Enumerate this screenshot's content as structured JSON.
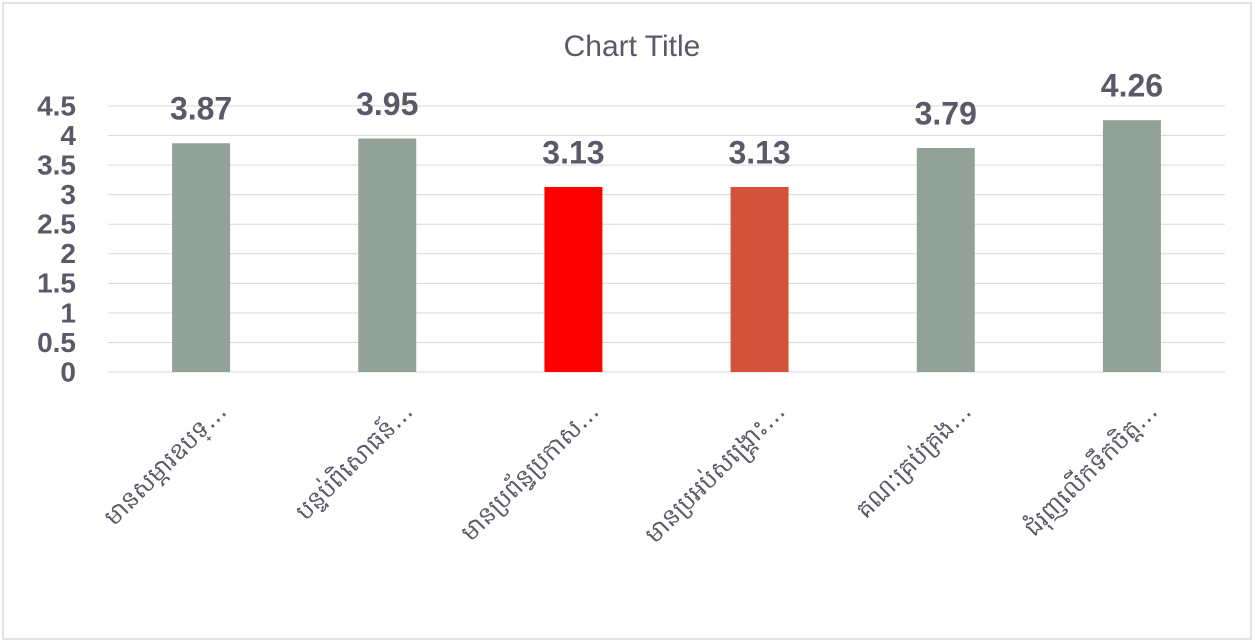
{
  "chart_data": {
    "type": "bar",
    "title": "Chart Title",
    "categories": [
      "មានសម្ភារឧបទ្…",
      "បន្ទប់ពិសោធន៍…",
      "មានប្រព័ន្ធប្រកាស…",
      "មានប្រអប់សង្គ្រោះ…",
      "គណៈគ្រប់គ្រង…",
      "ជំរុញលើកទឹកចិត្ត…"
    ],
    "values": [
      3.87,
      3.95,
      3.13,
      3.13,
      3.79,
      4.26
    ],
    "colors": [
      "#92a299",
      "#92a299",
      "#ff0000",
      "#d3523a",
      "#92a299",
      "#92a299"
    ],
    "ylim": [
      0,
      4.5
    ],
    "yticks": [
      0,
      0.5,
      1,
      1.5,
      2,
      2.5,
      3,
      3.5,
      4,
      4.5
    ],
    "grid": true
  }
}
